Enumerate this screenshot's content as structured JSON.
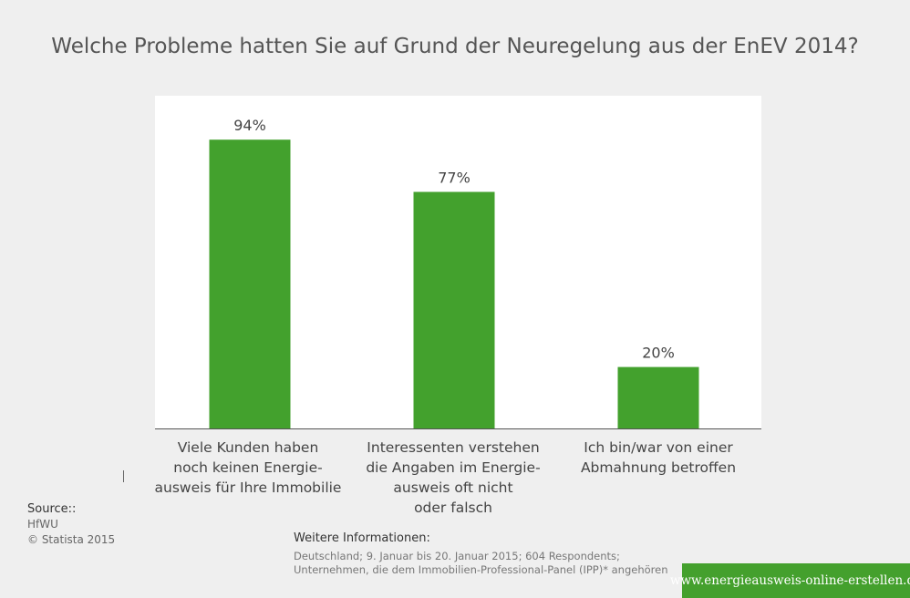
{
  "chart_data": {
    "type": "bar",
    "title": "Welche Probleme hatten Sie auf Grund der Neuregelung aus der EnEV 2014?",
    "categories": [
      "Viele Kunden haben\nnoch keinen Energie-\nausweis für Ihre Immobilie",
      "Interessenten verstehen\ndie Angaben im Energie-\nausweis oft nicht\noder falsch",
      "Ich bin/war von einer\nAbmahnung betroffen"
    ],
    "values": [
      94,
      77,
      20
    ],
    "value_labels": [
      "94%",
      "77%",
      "20%"
    ],
    "ylim": [
      0,
      100
    ],
    "grid": false,
    "bar_color": "#43a12d"
  },
  "source": {
    "heading": "Source::",
    "lines": [
      "HfWU",
      "© Statista 2015"
    ]
  },
  "info": {
    "heading": "Weitere Informationen:",
    "lines": [
      "Deutschland; 9. Januar bis 20. Januar 2015; 604 Respondents;",
      "Unternehmen, die dem Immobilien-Professional-Panel (IPP)* angehören"
    ]
  },
  "banner": {
    "text": "www.energieausweis-online-erstellen.de",
    "color": "#44a02d"
  }
}
